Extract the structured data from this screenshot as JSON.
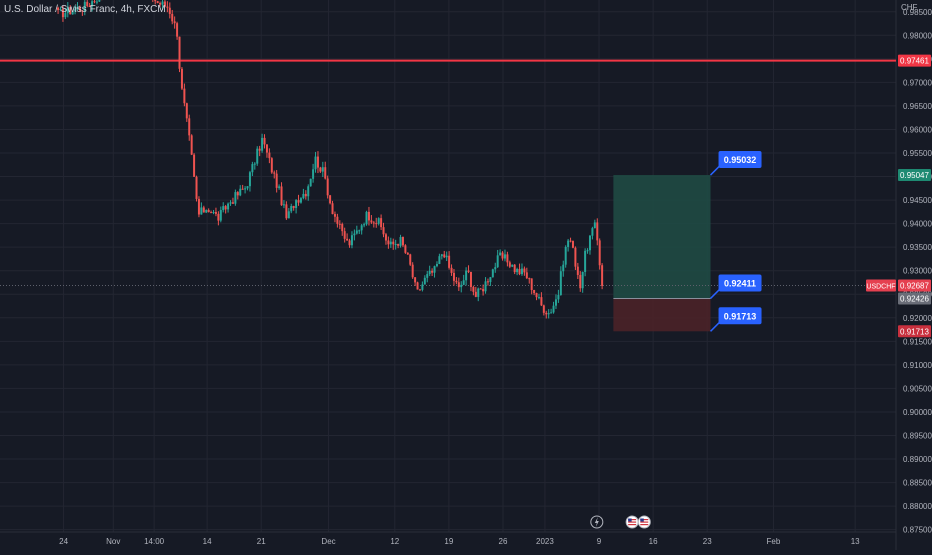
{
  "header": {
    "title": "U.S. Dollar / Swiss Franc, 4h, FXCM",
    "currency": "CHF"
  },
  "colors": {
    "background": "#161a25",
    "grid": "#232632",
    "bull": "#26a69a",
    "bear": "#ef5350",
    "resistance_line": "#f23645",
    "target_zone": "#1f4a44",
    "stop_zone": "#4a2228",
    "label_blue": "#2962ff",
    "axis_text": "#b2b5be"
  },
  "chart_data": {
    "type": "candlestick",
    "symbol": "USDCHF",
    "timeframe": "4h",
    "source": "FXCM",
    "ylim": [
      0.8745,
      0.9875
    ],
    "y_ticks": [
      "0.98500",
      "0.98000",
      "0.97500",
      "0.97000",
      "0.96500",
      "0.96000",
      "0.95500",
      "0.95000",
      "0.94500",
      "0.94000",
      "0.93500",
      "0.93000",
      "0.92500",
      "0.92000",
      "0.91500",
      "0.91000",
      "0.90500",
      "0.90000",
      "0.89500",
      "0.89000",
      "0.88500",
      "0.88000",
      "0.87500"
    ],
    "x_ticks": [
      {
        "label": "24",
        "pos": 0.0
      },
      {
        "label": "Nov",
        "pos": 4.5
      },
      {
        "label": "14:00",
        "pos": 8.2
      },
      {
        "label": "14",
        "pos": 13.0
      },
      {
        "label": "21",
        "pos": 17.9
      },
      {
        "label": "Dec",
        "pos": 24.0
      },
      {
        "label": "12",
        "pos": 30.0
      },
      {
        "label": "19",
        "pos": 34.9
      },
      {
        "label": "26",
        "pos": 39.8
      },
      {
        "label": "2023",
        "pos": 43.6
      },
      {
        "label": "9",
        "pos": 48.5
      },
      {
        "label": "16",
        "pos": 53.4
      },
      {
        "label": "23",
        "pos": 58.3
      },
      {
        "label": "Feb",
        "pos": 64.3
      },
      {
        "label": "13",
        "pos": 71.7
      }
    ],
    "x_range": [
      -2.5,
      75.4
    ],
    "anchors": [
      [
        -0.5,
        0.9845
      ],
      [
        2.0,
        0.9862
      ],
      [
        4.0,
        0.9898
      ],
      [
        6.0,
        0.992
      ],
      [
        7.5,
        0.9895
      ],
      [
        8.5,
        0.987
      ],
      [
        9.5,
        0.986
      ],
      [
        10.3,
        0.9805
      ],
      [
        10.6,
        0.97
      ],
      [
        11.0,
        0.964
      ],
      [
        11.5,
        0.956
      ],
      [
        12.2,
        0.9418
      ],
      [
        13.0,
        0.9435
      ],
      [
        14.0,
        0.9412
      ],
      [
        15.0,
        0.9445
      ],
      [
        16.5,
        0.9478
      ],
      [
        18.0,
        0.958
      ],
      [
        18.8,
        0.952
      ],
      [
        19.5,
        0.947
      ],
      [
        20.2,
        0.941
      ],
      [
        21.0,
        0.945
      ],
      [
        22.0,
        0.947
      ],
      [
        22.8,
        0.9538
      ],
      [
        23.6,
        0.9505
      ],
      [
        24.2,
        0.944
      ],
      [
        25.0,
        0.939
      ],
      [
        25.8,
        0.9355
      ],
      [
        26.6,
        0.9385
      ],
      [
        27.5,
        0.942
      ],
      [
        28.6,
        0.94
      ],
      [
        29.5,
        0.9352
      ],
      [
        30.5,
        0.9365
      ],
      [
        31.3,
        0.932
      ],
      [
        32.0,
        0.925
      ],
      [
        32.8,
        0.9285
      ],
      [
        33.6,
        0.93
      ],
      [
        34.4,
        0.9345
      ],
      [
        35.0,
        0.93
      ],
      [
        35.8,
        0.926
      ],
      [
        36.6,
        0.93
      ],
      [
        37.3,
        0.9245
      ],
      [
        38.0,
        0.9265
      ],
      [
        38.8,
        0.93
      ],
      [
        39.5,
        0.933
      ],
      [
        40.3,
        0.932
      ],
      [
        41.0,
        0.93
      ],
      [
        41.8,
        0.9295
      ],
      [
        42.6,
        0.9258
      ],
      [
        43.3,
        0.9225
      ],
      [
        44.0,
        0.921
      ],
      [
        44.8,
        0.925
      ],
      [
        45.3,
        0.933
      ],
      [
        45.8,
        0.9375
      ],
      [
        46.3,
        0.9325
      ],
      [
        46.8,
        0.927
      ],
      [
        47.3,
        0.934
      ],
      [
        47.8,
        0.938
      ],
      [
        48.2,
        0.9395
      ],
      [
        48.5,
        0.933
      ],
      [
        48.8,
        0.9268
      ]
    ],
    "horizontal_line": {
      "price": 0.97461,
      "label": "0.97461"
    },
    "last_price": {
      "symbol_label": "USDCHF",
      "price": 0.92687,
      "label": "0.92687"
    },
    "position": {
      "x_start": 49.8,
      "x_end": 58.6,
      "target": 0.95032,
      "entry": 0.92411,
      "stop": 0.91713,
      "target_label": "0.95032",
      "entry_label": "0.92411",
      "stop_label": "0.91713",
      "target_axis_label": "0.95047",
      "entry_axis_label": "0.92426",
      "stop_axis_label": "0.91713"
    },
    "event_markers": [
      {
        "pos": 48.3,
        "icon": "flash-icon"
      },
      {
        "pos": 51.5,
        "icon": "us-flag-icon"
      },
      {
        "pos": 52.6,
        "icon": "us-flag-icon"
      }
    ]
  }
}
